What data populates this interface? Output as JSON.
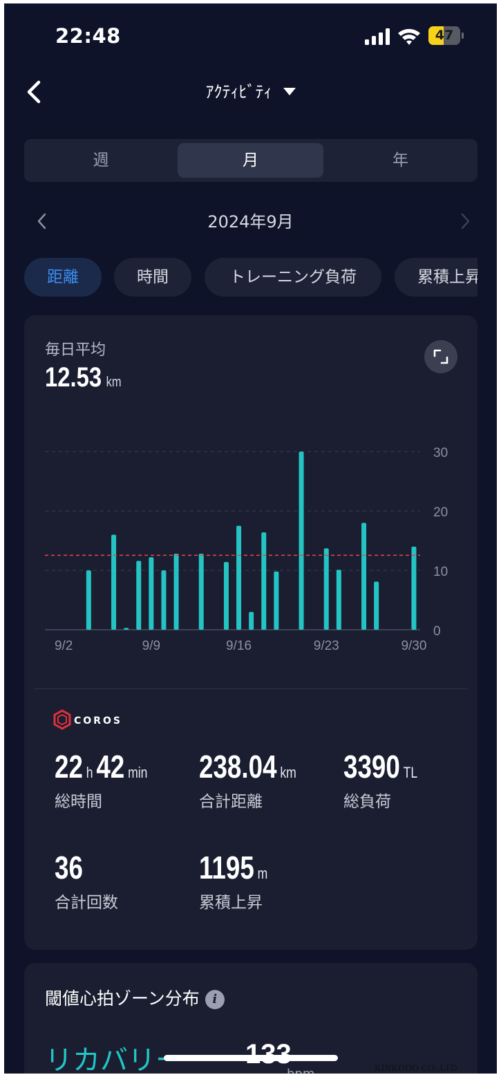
{
  "status_bar": {
    "time": "22:48",
    "battery": "47",
    "battery_level": 0.47
  },
  "header": {
    "title": "ｱｸﾃｨﾋﾞﾃｨ",
    "back_icon": "chevron-left-icon",
    "dropdown_icon": "caret-down-icon"
  },
  "segments": [
    {
      "label": "週",
      "active": false
    },
    {
      "label": "月",
      "active": true
    },
    {
      "label": "年",
      "active": false
    }
  ],
  "period": {
    "label": "2024年9月",
    "prev_icon": "chevron-left-icon",
    "next_icon": "chevron-right-icon"
  },
  "metric_chips": [
    {
      "label": "距離",
      "active": true
    },
    {
      "label": "時間",
      "active": false
    },
    {
      "label": "トレーニング負荷",
      "active": false
    },
    {
      "label": "累積上昇",
      "active": false
    }
  ],
  "summary": {
    "avg_label": "毎日平均",
    "avg_value": "12.53",
    "avg_unit": "km",
    "expand_icon": "expand-icon"
  },
  "chart_data": {
    "type": "bar",
    "x": [
      "9/1",
      "9/2",
      "9/3",
      "9/4",
      "9/5",
      "9/6",
      "9/7",
      "9/8",
      "9/9",
      "9/10",
      "9/11",
      "9/12",
      "9/13",
      "9/14",
      "9/15",
      "9/16",
      "9/17",
      "9/18",
      "9/19",
      "9/20",
      "9/21",
      "9/22",
      "9/23",
      "9/24",
      "9/25",
      "9/26",
      "9/27",
      "9/28",
      "9/29",
      "9/30"
    ],
    "values": [
      0,
      0,
      0,
      10,
      0,
      16,
      0.3,
      11.6,
      12.2,
      10,
      12.8,
      0,
      12.8,
      0,
      11.4,
      17.5,
      3,
      16.4,
      9.8,
      0,
      30,
      0,
      13.7,
      10.1,
      0,
      18,
      8.1,
      0,
      0,
      14
    ],
    "x_ticks": [
      "9/2",
      "9/9",
      "9/16",
      "9/23",
      "9/30"
    ],
    "y_ticks": [
      "30",
      "20",
      "10",
      "0"
    ],
    "ylim": [
      0,
      32
    ],
    "reference_line": {
      "value": 12.53
    },
    "bar_color": "#25c4c4",
    "reference_color": "#e0424f",
    "grid": true
  },
  "brand": {
    "name": "COROS",
    "logo_icon": "coros-logo-icon",
    "color": "#e0303a"
  },
  "stats": [
    {
      "value": "22",
      "unit": "h",
      "value2": "42",
      "unit2": "min",
      "label": "総時間"
    },
    {
      "value": "238.04",
      "unit": "km",
      "value2": "",
      "unit2": "",
      "label": "合計距離"
    },
    {
      "value": "3390",
      "unit": "TL",
      "value2": "",
      "unit2": "",
      "label": "総負荷"
    },
    {
      "value": "36",
      "unit": "",
      "value2": "",
      "unit2": "",
      "label": "合計回数"
    },
    {
      "value": "1195",
      "unit": "m",
      "value2": "",
      "unit2": "",
      "label": "累積上昇"
    }
  ],
  "zones": {
    "title": "閾値心拍ゾーン分布",
    "info_icon": "info-icon",
    "info_glyph": "i",
    "first_zone": {
      "name": "リカバリー",
      "value": "133",
      "unit": "bpm"
    }
  },
  "watermark": "KINKODO CO.,LTD"
}
